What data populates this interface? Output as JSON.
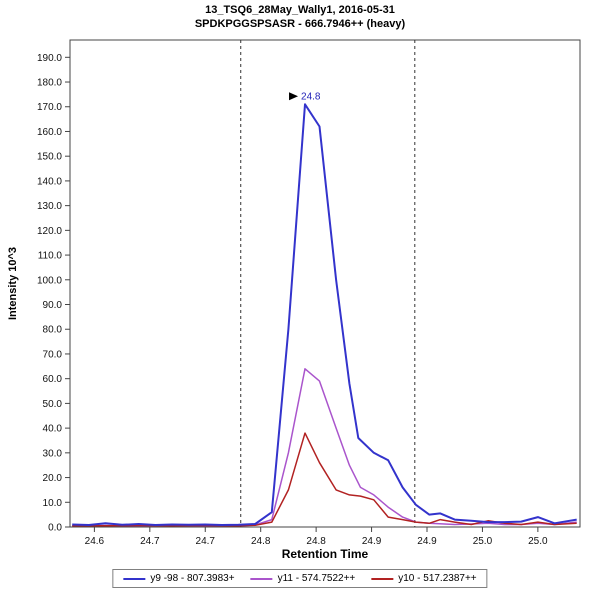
{
  "chart_data": {
    "type": "line",
    "title": "13_TSQ6_28May_Wally1, 2016-05-31",
    "subtitle": "SPDKPGGSPSASR - 666.7946++ (heavy)",
    "xlabel": "Retention Time",
    "ylabel": "Intensity 10^3",
    "xlim": [
      24.578,
      25.038
    ],
    "ylim": [
      0,
      197
    ],
    "grid": false,
    "legend_position": "bottom",
    "x_ticks": {
      "values": [
        24.6,
        24.65,
        24.7,
        24.75,
        24.8,
        24.85,
        24.9,
        24.95,
        25.0
      ],
      "labels": [
        "24.6",
        "24.7",
        "24.7",
        "24.8",
        "24.8",
        "24.9",
        "24.9",
        "25.0",
        "25.0"
      ]
    },
    "y_ticks": {
      "values": [
        0,
        10,
        20,
        30,
        40,
        50,
        60,
        70,
        80,
        90,
        100,
        110,
        120,
        130,
        140,
        150,
        160,
        170,
        180,
        190
      ],
      "labels": [
        "0.0",
        "10.0",
        "20.0",
        "30.0",
        "40.0",
        "50.0",
        "60.0",
        "70.0",
        "80.0",
        "90.0",
        "100.0",
        "110.0",
        "120.0",
        "130.0",
        "140.0",
        "150.0",
        "160.0",
        "170.0",
        "180.0",
        "190.0"
      ]
    },
    "integration_boundaries": [
      24.732,
      24.889
    ],
    "peak_annotation": {
      "text": "24.8",
      "x": 24.79,
      "y": 171
    },
    "series": [
      {
        "name": "y9 -98 - 807.3983+",
        "color": "#3333cc",
        "width": 2,
        "points": [
          [
            24.58,
            1
          ],
          [
            24.595,
            0.8
          ],
          [
            24.61,
            1.5
          ],
          [
            24.625,
            0.9
          ],
          [
            24.64,
            1.2
          ],
          [
            24.655,
            0.8
          ],
          [
            24.67,
            1.0
          ],
          [
            24.685,
            0.9
          ],
          [
            24.7,
            1.0
          ],
          [
            24.715,
            0.8
          ],
          [
            24.73,
            0.9
          ],
          [
            24.745,
            1.2
          ],
          [
            24.76,
            6
          ],
          [
            24.775,
            80
          ],
          [
            24.79,
            171
          ],
          [
            24.803,
            162
          ],
          [
            24.818,
            100
          ],
          [
            24.83,
            58
          ],
          [
            24.838,
            36
          ],
          [
            24.852,
            30
          ],
          [
            24.865,
            27
          ],
          [
            24.878,
            16
          ],
          [
            24.89,
            9
          ],
          [
            24.902,
            5
          ],
          [
            24.912,
            5.5
          ],
          [
            24.925,
            3
          ],
          [
            24.94,
            2.5
          ],
          [
            24.955,
            2
          ],
          [
            24.97,
            2
          ],
          [
            24.985,
            2.2
          ],
          [
            25.0,
            4
          ],
          [
            25.015,
            1.5
          ],
          [
            25.035,
            3
          ]
        ]
      },
      {
        "name": "y11 - 574.7522++",
        "color": "#aa55cc",
        "width": 1.5,
        "points": [
          [
            24.58,
            0.5
          ],
          [
            24.61,
            0.6
          ],
          [
            24.64,
            0.5
          ],
          [
            24.67,
            0.6
          ],
          [
            24.7,
            0.5
          ],
          [
            24.73,
            0.5
          ],
          [
            24.745,
            0.8
          ],
          [
            24.76,
            3
          ],
          [
            24.775,
            30
          ],
          [
            24.79,
            64
          ],
          [
            24.803,
            59
          ],
          [
            24.818,
            40
          ],
          [
            24.83,
            25
          ],
          [
            24.84,
            16
          ],
          [
            24.852,
            13
          ],
          [
            24.865,
            8
          ],
          [
            24.878,
            4
          ],
          [
            24.89,
            2
          ],
          [
            24.902,
            1.5
          ],
          [
            24.925,
            1
          ],
          [
            24.94,
            1.2
          ],
          [
            24.955,
            1.5
          ],
          [
            24.97,
            1
          ],
          [
            24.985,
            1
          ],
          [
            25.0,
            1.5
          ],
          [
            25.015,
            1
          ],
          [
            25.035,
            2
          ]
        ]
      },
      {
        "name": "y10 - 517.2387++",
        "color": "#b22222",
        "width": 1.5,
        "points": [
          [
            24.58,
            0.5
          ],
          [
            24.61,
            0.5
          ],
          [
            24.64,
            0.6
          ],
          [
            24.67,
            0.5
          ],
          [
            24.7,
            0.6
          ],
          [
            24.73,
            0.5
          ],
          [
            24.745,
            0.7
          ],
          [
            24.76,
            2
          ],
          [
            24.775,
            15
          ],
          [
            24.79,
            38
          ],
          [
            24.803,
            26
          ],
          [
            24.818,
            15
          ],
          [
            24.83,
            13
          ],
          [
            24.84,
            12.5
          ],
          [
            24.852,
            11
          ],
          [
            24.865,
            4
          ],
          [
            24.878,
            3
          ],
          [
            24.89,
            2
          ],
          [
            24.902,
            1.5
          ],
          [
            24.912,
            3
          ],
          [
            24.925,
            2
          ],
          [
            24.94,
            1
          ],
          [
            24.955,
            2.5
          ],
          [
            24.97,
            1.5
          ],
          [
            24.985,
            1
          ],
          [
            25.0,
            2
          ],
          [
            25.015,
            1
          ],
          [
            25.035,
            1.5
          ]
        ]
      }
    ],
    "legend": [
      {
        "label": "y9 -98 - 807.3983+",
        "color": "#3333cc"
      },
      {
        "label": "y11 - 574.7522++",
        "color": "#aa55cc"
      },
      {
        "label": "y10 - 517.2387++",
        "color": "#b22222"
      }
    ]
  }
}
